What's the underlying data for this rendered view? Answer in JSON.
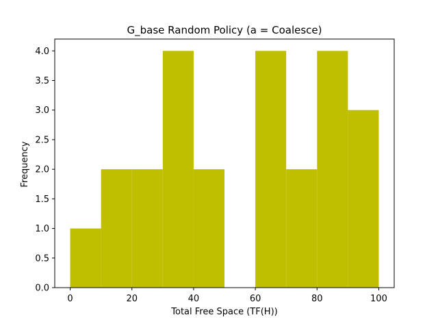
{
  "chart_data": {
    "type": "bar",
    "title": "G_base Random Policy (a = Coalesce)",
    "xlabel": "Total Free Space (TF(H))",
    "ylabel": "Frequency",
    "bin_edges": [
      0,
      10,
      20,
      30,
      40,
      50,
      60,
      70,
      80,
      90,
      100
    ],
    "values": [
      1,
      2,
      2,
      4,
      2,
      0,
      4,
      2,
      4,
      3
    ],
    "xlim": [
      -5,
      105
    ],
    "ylim": [
      0,
      4.2
    ],
    "xticks": [
      0,
      20,
      40,
      60,
      80,
      100
    ],
    "xtick_labels": [
      "0",
      "20",
      "40",
      "60",
      "80",
      "100"
    ],
    "yticks": [
      0,
      0.5,
      1,
      1.5,
      2,
      2.5,
      3,
      3.5,
      4
    ],
    "ytick_labels": [
      "0.0",
      "0.5",
      "1.0",
      "1.5",
      "2.0",
      "2.5",
      "3.0",
      "3.5",
      "4.0"
    ],
    "bar_color": "#bfbf00",
    "grid": false,
    "legend": "none"
  }
}
